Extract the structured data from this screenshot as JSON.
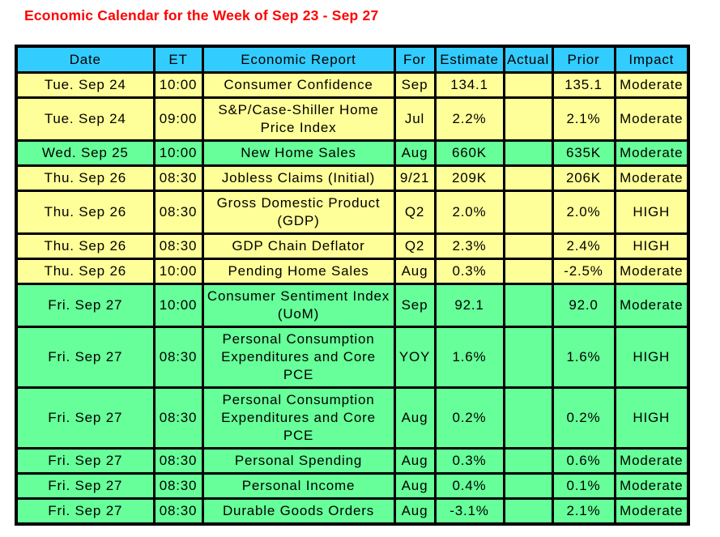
{
  "title": "Economic Calendar for the Week of Sep 23 - Sep 27",
  "colors": {
    "title": "#ff0000",
    "header_bg": "#33ccff",
    "yellow_row": "#ffff99",
    "green_row": "#66ff99",
    "border": "#000000",
    "text": "#000000",
    "page_bg": "#ffffff"
  },
  "table": {
    "columns": [
      "Date",
      "ET",
      "Economic Report",
      "For",
      "Estimate",
      "Actual",
      "Prior",
      "Impact"
    ],
    "rows": [
      {
        "date": "Tue. Sep 24",
        "et": "10:00",
        "report": "Consumer Confidence",
        "for": "Sep",
        "estimate": "134.1",
        "actual": "",
        "prior": "135.1",
        "impact": "Moderate",
        "tone": "yellow"
      },
      {
        "date": "Tue. Sep 24",
        "et": "09:00",
        "report": "S&P/Case-Shiller Home Price Index",
        "for": "Jul",
        "estimate": "2.2%",
        "actual": "",
        "prior": "2.1%",
        "impact": "Moderate",
        "tone": "yellow"
      },
      {
        "date": "Wed. Sep 25",
        "et": "10:00",
        "report": "New Home Sales",
        "for": "Aug",
        "estimate": "660K",
        "actual": "",
        "prior": "635K",
        "impact": "Moderate",
        "tone": "green"
      },
      {
        "date": "Thu. Sep 26",
        "et": "08:30",
        "report": "Jobless Claims (Initial)",
        "for": "9/21",
        "estimate": "209K",
        "actual": "",
        "prior": "206K",
        "impact": "Moderate",
        "tone": "yellow"
      },
      {
        "date": "Thu. Sep 26",
        "et": "08:30",
        "report": "Gross Domestic Product (GDP)",
        "for": "Q2",
        "estimate": "2.0%",
        "actual": "",
        "prior": "2.0%",
        "impact": "HIGH",
        "tone": "yellow"
      },
      {
        "date": "Thu. Sep 26",
        "et": "08:30",
        "report": "GDP Chain Deflator",
        "for": "Q2",
        "estimate": "2.3%",
        "actual": "",
        "prior": "2.4%",
        "impact": "HIGH",
        "tone": "yellow"
      },
      {
        "date": "Thu. Sep 26",
        "et": "10:00",
        "report": "Pending Home Sales",
        "for": "Aug",
        "estimate": "0.3%",
        "actual": "",
        "prior": "-2.5%",
        "impact": "Moderate",
        "tone": "yellow"
      },
      {
        "date": "Fri. Sep 27",
        "et": "10:00",
        "report": "Consumer Sentiment Index (UoM)",
        "for": "Sep",
        "estimate": "92.1",
        "actual": "",
        "prior": "92.0",
        "impact": "Moderate",
        "tone": "green"
      },
      {
        "date": "Fri. Sep 27",
        "et": "08:30",
        "report": "Personal Consumption Expenditures and Core PCE",
        "for": "YOY",
        "estimate": "1.6%",
        "actual": "",
        "prior": "1.6%",
        "impact": "HIGH",
        "tone": "green"
      },
      {
        "date": "Fri. Sep 27",
        "et": "08:30",
        "report": "Personal Consumption Expenditures and Core PCE",
        "for": "Aug",
        "estimate": "0.2%",
        "actual": "",
        "prior": "0.2%",
        "impact": "HIGH",
        "tone": "green"
      },
      {
        "date": "Fri. Sep 27",
        "et": "08:30",
        "report": "Personal Spending",
        "for": "Aug",
        "estimate": "0.3%",
        "actual": "",
        "prior": "0.6%",
        "impact": "Moderate",
        "tone": "green"
      },
      {
        "date": "Fri. Sep 27",
        "et": "08:30",
        "report": "Personal Income",
        "for": "Aug",
        "estimate": "0.4%",
        "actual": "",
        "prior": "0.1%",
        "impact": "Moderate",
        "tone": "green"
      },
      {
        "date": "Fri. Sep 27",
        "et": "08:30",
        "report": "Durable Goods Orders",
        "for": "Aug",
        "estimate": "-3.1%",
        "actual": "",
        "prior": "2.1%",
        "impact": "Moderate",
        "tone": "green"
      }
    ]
  }
}
